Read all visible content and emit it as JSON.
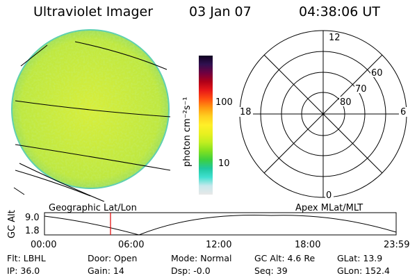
{
  "header": {
    "title": "Ultraviolet Imager",
    "date": "03 Jan 07",
    "time": "04:38:06 UT"
  },
  "colorbar": {
    "label": "photon cm⁻²s⁻¹",
    "ticks": [
      "100",
      "10"
    ],
    "colors": [
      "#e8e8e8",
      "#c8e8ec",
      "#40e0d0",
      "#20c8a0",
      "#3cd040",
      "#80e020",
      "#c0ee20",
      "#e8f020",
      "#fff028",
      "#ffd020",
      "#ff9a10",
      "#ff5010",
      "#e81818",
      "#b00018",
      "#700040",
      "#301050",
      "#100020"
    ]
  },
  "earth_disk": {
    "colors": {
      "fill": "#c4ea3c",
      "edge": "#5fd0b0"
    }
  },
  "polar_plot": {
    "labels": {
      "top": "12",
      "bottom": "0",
      "left": "18",
      "right": "6",
      "lat60": "60",
      "lat70": "70",
      "lat80": "80"
    }
  },
  "orbit_plot": {
    "left_label": "Geographic Lat/Lon",
    "right_label": "Apex MLat/MLT",
    "y_axis_label": "GC Alt",
    "y_ticks": [
      "9.0",
      "1.8"
    ],
    "x_ticks": [
      "00:00",
      "06:00",
      "12:00",
      "18:00",
      "23:59"
    ],
    "marker_time": "04:38",
    "marker_color": "#e00000"
  },
  "status": {
    "row1": [
      {
        "key": "filter",
        "text": "Flt: LBHL"
      },
      {
        "key": "door",
        "text": "Door: Open"
      },
      {
        "key": "mode",
        "text": "Mode: Normal"
      },
      {
        "key": "gcalt",
        "text": "GC Alt: 4.6 Re"
      },
      {
        "key": "glat",
        "text": "GLat:  13.9"
      }
    ],
    "row2": [
      {
        "key": "ip",
        "text": "IP: 36.0"
      },
      {
        "key": "gain",
        "text": "Gain: 14"
      },
      {
        "key": "dsp",
        "text": "Dsp:   -0.0"
      },
      {
        "key": "seq",
        "text": "Seq: 39"
      },
      {
        "key": "glon",
        "text": "GLon: 152.4"
      }
    ]
  }
}
